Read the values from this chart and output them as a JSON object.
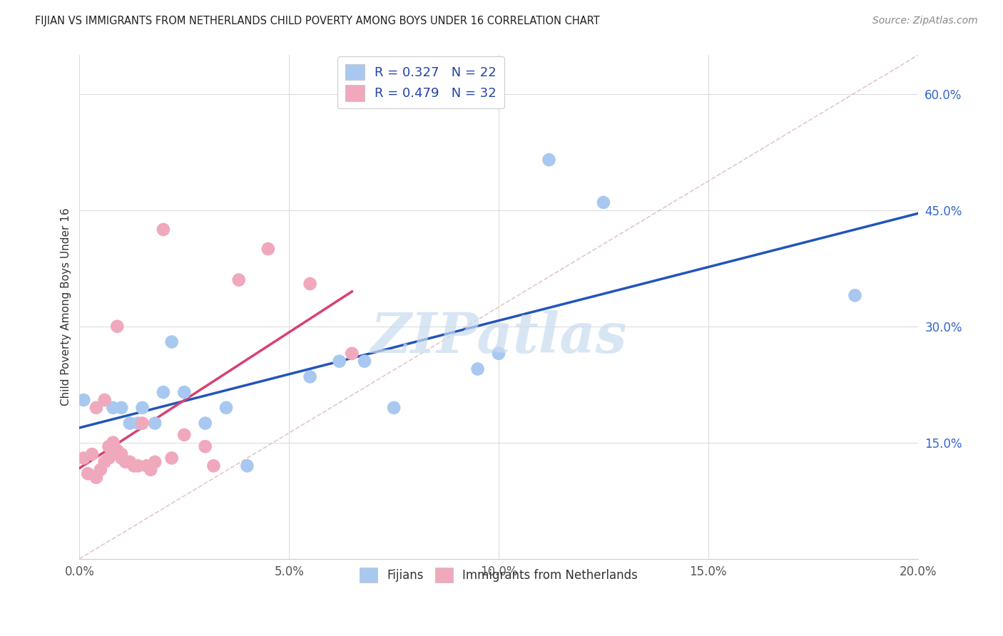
{
  "title": "FIJIAN VS IMMIGRANTS FROM NETHERLANDS CHILD POVERTY AMONG BOYS UNDER 16 CORRELATION CHART",
  "source": "Source: ZipAtlas.com",
  "ylabel": "Child Poverty Among Boys Under 16",
  "xlim": [
    0.0,
    0.2
  ],
  "ylim": [
    0.0,
    0.65
  ],
  "xtick_labels": [
    "0.0%",
    "",
    "5.0%",
    "",
    "10.0%",
    "",
    "15.0%",
    "",
    "20.0%"
  ],
  "xtick_values": [
    0.0,
    0.025,
    0.05,
    0.075,
    0.1,
    0.125,
    0.15,
    0.175,
    0.2
  ],
  "ytick_labels": [
    "15.0%",
    "30.0%",
    "45.0%",
    "60.0%"
  ],
  "ytick_values": [
    0.15,
    0.3,
    0.45,
    0.6
  ],
  "fijian_color": "#a8c8f0",
  "netherlands_color": "#f0a8bc",
  "fijian_line_color": "#2255bb",
  "netherlands_line_color": "#d94070",
  "diagonal_color": "#ddbaba",
  "r_fijian": 0.327,
  "n_fijian": 22,
  "r_netherlands": 0.479,
  "n_netherlands": 32,
  "fijian_points_x": [
    0.001,
    0.008,
    0.01,
    0.012,
    0.014,
    0.015,
    0.018,
    0.02,
    0.022,
    0.025,
    0.03,
    0.035,
    0.04,
    0.055,
    0.062,
    0.068,
    0.075,
    0.095,
    0.1,
    0.112,
    0.125,
    0.185
  ],
  "fijian_points_y": [
    0.205,
    0.195,
    0.195,
    0.175,
    0.175,
    0.195,
    0.175,
    0.215,
    0.28,
    0.215,
    0.175,
    0.195,
    0.12,
    0.235,
    0.255,
    0.255,
    0.195,
    0.245,
    0.265,
    0.515,
    0.46,
    0.34
  ],
  "netherlands_points_x": [
    0.001,
    0.002,
    0.003,
    0.004,
    0.004,
    0.005,
    0.006,
    0.006,
    0.007,
    0.007,
    0.008,
    0.009,
    0.009,
    0.01,
    0.01,
    0.011,
    0.012,
    0.013,
    0.014,
    0.015,
    0.016,
    0.017,
    0.018,
    0.02,
    0.022,
    0.025,
    0.03,
    0.032,
    0.038,
    0.045,
    0.055,
    0.065
  ],
  "netherlands_points_y": [
    0.13,
    0.11,
    0.135,
    0.105,
    0.195,
    0.115,
    0.125,
    0.205,
    0.13,
    0.145,
    0.15,
    0.14,
    0.3,
    0.13,
    0.135,
    0.125,
    0.125,
    0.12,
    0.12,
    0.175,
    0.12,
    0.115,
    0.125,
    0.425,
    0.13,
    0.16,
    0.145,
    0.12,
    0.36,
    0.4,
    0.355,
    0.265
  ],
  "watermark_text": "ZIPatlas",
  "watermark_color": "#c8dcf0",
  "background_color": "#ffffff",
  "grid_color": "#d8d8d8",
  "bottom_legend_labels": [
    "Fijians",
    "Immigrants from Netherlands"
  ]
}
